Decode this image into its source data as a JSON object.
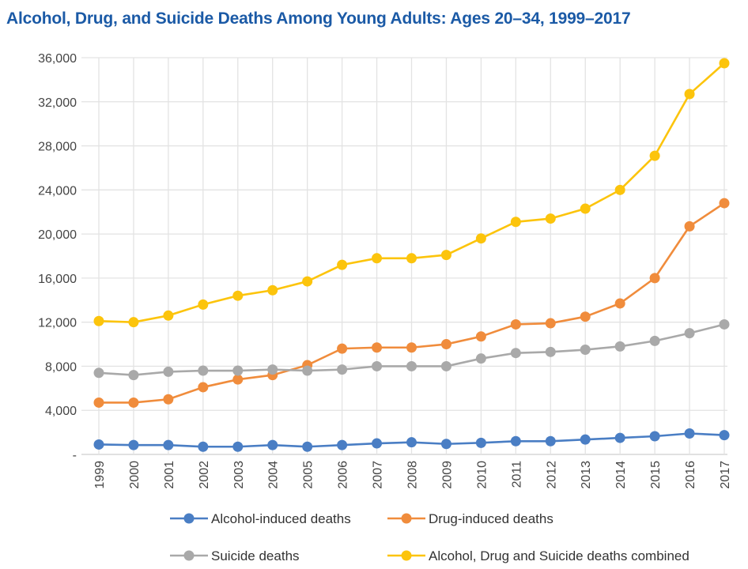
{
  "chart_data": {
    "type": "line",
    "title": "Alcohol, Drug, and Suicide Deaths Among Young Adults: Ages 20–34, 1999–2017",
    "xlabel": "",
    "ylabel": "",
    "x": [
      "1999",
      "2000",
      "2001",
      "2002",
      "2003",
      "2004",
      "2005",
      "2006",
      "2007",
      "2008",
      "2009",
      "2010",
      "2011",
      "2012",
      "2013",
      "2014",
      "2015",
      "2016",
      "2017"
    ],
    "ylim": [
      0,
      36000
    ],
    "yticks": [
      0,
      4000,
      8000,
      12000,
      16000,
      20000,
      24000,
      28000,
      32000,
      36000
    ],
    "ytick_labels": [
      "-",
      "4,000",
      "8,000",
      "12,000",
      "16,000",
      "20,000",
      "24,000",
      "28,000",
      "32,000",
      "36,000"
    ],
    "grid": true,
    "legend_position": "bottom",
    "series": [
      {
        "name": "Alcohol-induced deaths",
        "color": "#4a7ec4",
        "values": [
          900,
          850,
          850,
          700,
          700,
          850,
          700,
          850,
          1000,
          1100,
          950,
          1050,
          1200,
          1200,
          1350,
          1500,
          1650,
          1900,
          1750
        ]
      },
      {
        "name": "Drug-induced deaths",
        "color": "#f08c3c",
        "values": [
          4700,
          4700,
          5000,
          6100,
          6800,
          7200,
          8100,
          9600,
          9700,
          9700,
          10000,
          10700,
          11800,
          11900,
          12500,
          13700,
          16000,
          20700,
          22800
        ]
      },
      {
        "name": "Suicide deaths",
        "color": "#a9a9a9",
        "values": [
          7400,
          7200,
          7500,
          7600,
          7600,
          7700,
          7600,
          7700,
          8000,
          8000,
          8000,
          8700,
          9200,
          9300,
          9500,
          9800,
          10300,
          11000,
          11800
        ]
      },
      {
        "name": "Alcohol, Drug and Suicide deaths combined",
        "color": "#fcc40c",
        "values": [
          12100,
          12000,
          12600,
          13600,
          14400,
          14900,
          15700,
          17200,
          17800,
          17800,
          18100,
          19600,
          21100,
          21400,
          22300,
          24000,
          27100,
          32700,
          35500
        ]
      }
    ]
  }
}
